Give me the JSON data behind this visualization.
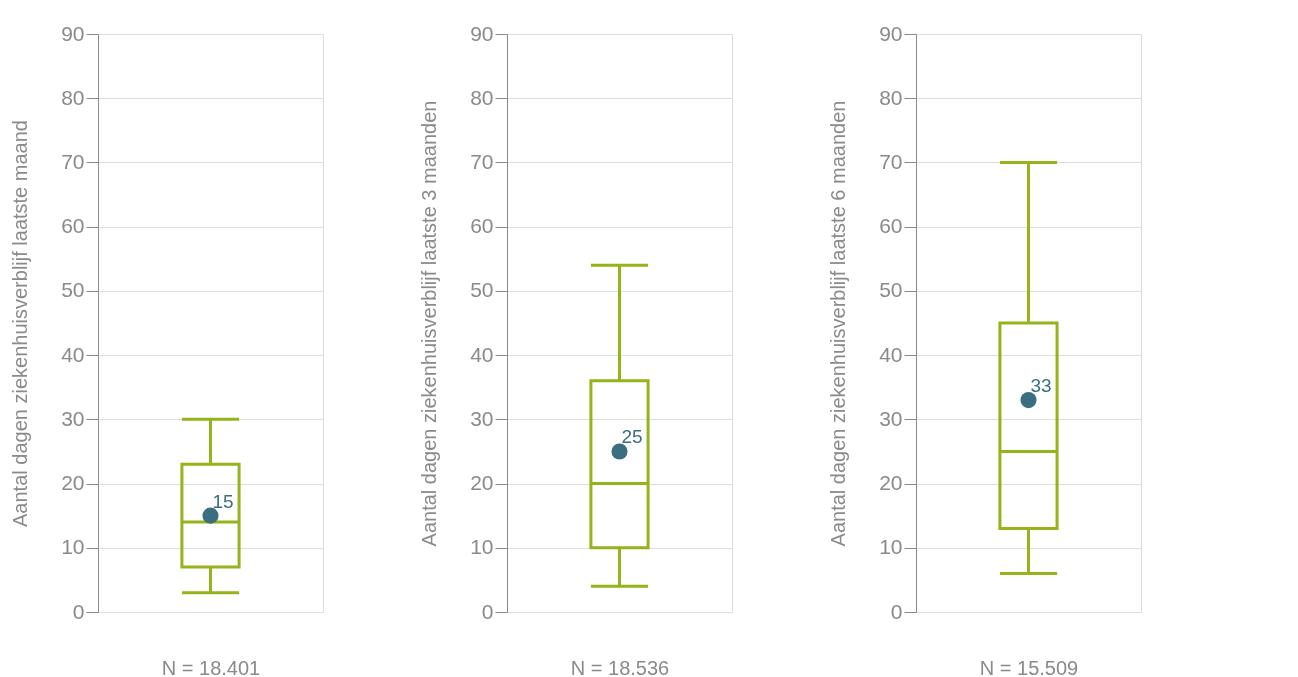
{
  "chart_data": [
    {
      "type": "box",
      "categories": [
        null
      ],
      "ylabel": "Aantal dagen ziekenhuisverblijf laatste maand",
      "xlabel": "N =  18.401",
      "ylim": [
        0,
        90
      ],
      "yticks": [
        0,
        10,
        20,
        30,
        40,
        50,
        60,
        70,
        80,
        90
      ],
      "grid": "y",
      "color": "#95b31a",
      "boxes": [
        {
          "low": 3,
          "q1": 7,
          "median": 14,
          "q3": 23,
          "high": 30,
          "mean": 15
        }
      ],
      "annotations": [
        "15"
      ]
    },
    {
      "type": "box",
      "categories": [
        null
      ],
      "ylabel": "Aantal dagen ziekenhuisverblijf laatste 3 maanden",
      "xlabel": "N =  18.536",
      "ylim": [
        0,
        90
      ],
      "yticks": [
        0,
        10,
        20,
        30,
        40,
        50,
        60,
        70,
        80,
        90
      ],
      "grid": "y",
      "color": "#95b31a",
      "boxes": [
        {
          "low": 4,
          "q1": 10,
          "median": 20,
          "q3": 36,
          "high": 54,
          "mean": 25
        }
      ],
      "annotations": [
        "25"
      ]
    },
    {
      "type": "box",
      "categories": [
        null
      ],
      "ylabel": "Aantal dagen ziekenhuisverblijf laatste 6 maanden",
      "xlabel": "N =  15.509",
      "ylim": [
        0,
        90
      ],
      "yticks": [
        0,
        10,
        20,
        30,
        40,
        50,
        60,
        70,
        80,
        90
      ],
      "grid": "y",
      "color": "#95b31a",
      "boxes": [
        {
          "low": 6,
          "q1": 13,
          "median": 25,
          "q3": 45,
          "high": 70,
          "mean": 33
        }
      ],
      "annotations": [
        "33"
      ]
    }
  ]
}
